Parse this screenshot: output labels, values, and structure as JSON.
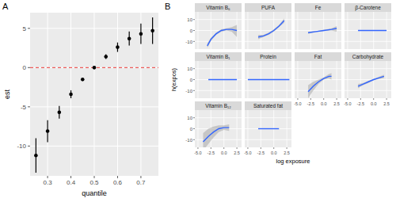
{
  "chart_data": [
    {
      "type": "scatter",
      "panel": "A",
      "x_label": "quantile",
      "y_label": "est",
      "x": [
        0.25,
        0.3,
        0.35,
        0.4,
        0.45,
        0.5,
        0.55,
        0.6,
        0.65,
        0.7,
        0.75
      ],
      "values": [
        -11.2,
        -8.1,
        -5.7,
        -3.4,
        -1.5,
        0,
        1.4,
        2.6,
        3.7,
        4.3,
        4.7
      ],
      "errors": [
        2.2,
        1.4,
        0.8,
        0.5,
        0.2,
        0,
        0.3,
        0.6,
        0.9,
        1.3,
        1.7
      ],
      "color": "#000000",
      "xlim": [
        0.225,
        0.775
      ],
      "ylim": [
        -13.8,
        7
      ],
      "xticks": [
        0.3,
        0.4,
        0.5,
        0.6,
        0.7
      ],
      "yticks": [
        -10,
        -5,
        0,
        5
      ],
      "grid": true,
      "reference_line": {
        "value": 0,
        "color": "#e8231f",
        "line_style": "dashed"
      }
    },
    {
      "type": "line",
      "panel": "B",
      "x_label": "log exposure",
      "y_label": "h(expos)",
      "color": "#3366ff",
      "xlim": [
        -5.6,
        3.4
      ],
      "ylim": [
        -17,
        17
      ],
      "xticks": [
        {
          "value": -5,
          "label": "-5.0"
        },
        {
          "value": -2.5,
          "label": "-2.5"
        },
        {
          "value": 0,
          "label": "0.0"
        },
        {
          "value": 2.5,
          "label": "2.5"
        }
      ],
      "yticks": [
        -10,
        0,
        10
      ],
      "grid": true,
      "series": [
        {
          "name": "Vitamin B₆",
          "x": [
            -3.2,
            -2.5,
            -1.5,
            -0.5,
            0.5,
            1.5,
            2.5
          ],
          "values": [
            -14,
            -8,
            -3,
            0,
            1,
            1,
            0
          ],
          "lower": [
            -16,
            -9.5,
            -4,
            -1,
            0,
            -1,
            -6
          ],
          "upper": [
            -12,
            -6.5,
            -2,
            1,
            2,
            3,
            5
          ]
        },
        {
          "name": "PUFA",
          "x": [
            -3,
            -2,
            -1,
            0,
            1,
            2
          ],
          "values": [
            -6,
            -5,
            -3,
            0,
            4,
            9
          ],
          "lower": [
            -8,
            -6,
            -4,
            -1,
            3,
            7
          ],
          "upper": [
            -4,
            -4,
            -2,
            1,
            5,
            11
          ]
        },
        {
          "name": "Fe",
          "x": [
            -3,
            -1.5,
            0,
            1.5,
            2.5
          ],
          "values": [
            -2,
            -1,
            0,
            1,
            2
          ],
          "lower": [
            -3,
            -1.5,
            -0.5,
            0,
            -1
          ],
          "upper": [
            -1,
            -0.5,
            0.5,
            2,
            4
          ]
        },
        {
          "name": "β-Carotene",
          "x": [
            -3,
            2.5
          ],
          "values": [
            0,
            0
          ]
        },
        {
          "name": "Vitamin B₁",
          "x": [
            -3,
            2.5
          ],
          "values": [
            0,
            0
          ]
        },
        {
          "name": "Protein",
          "x": [
            -5,
            3
          ],
          "values": [
            0,
            0
          ]
        },
        {
          "name": "Fat",
          "x": [
            -3,
            -2,
            -1,
            0,
            1,
            1.5
          ],
          "values": [
            -11,
            -6,
            -2,
            1,
            3,
            3
          ],
          "lower": [
            -17,
            -10,
            -4,
            0,
            1,
            0
          ],
          "upper": [
            -5,
            -2,
            0,
            2,
            5,
            6
          ]
        },
        {
          "name": "Carbohydrate",
          "x": [
            -3,
            -2,
            -1,
            0,
            1,
            2
          ],
          "values": [
            -6,
            -4,
            -2,
            0,
            1.5,
            3
          ],
          "lower": [
            -8,
            -5,
            -3,
            -0.5,
            0.5,
            1.5
          ],
          "upper": [
            -4,
            -3,
            -1,
            0.5,
            2.5,
            4.5
          ]
        },
        {
          "name": "Vitamin B₁₂",
          "x": [
            -4,
            -3,
            -2,
            -1,
            0,
            1
          ],
          "values": [
            -12,
            -7,
            -3,
            0,
            1,
            1
          ],
          "lower": [
            -20,
            -14,
            -8,
            -3,
            -1,
            -2
          ],
          "upper": [
            -4,
            0,
            2,
            3,
            3,
            4
          ]
        },
        {
          "name": "Saturated fat",
          "x": [
            -3,
            1
          ],
          "values": [
            0,
            0
          ]
        }
      ]
    }
  ]
}
